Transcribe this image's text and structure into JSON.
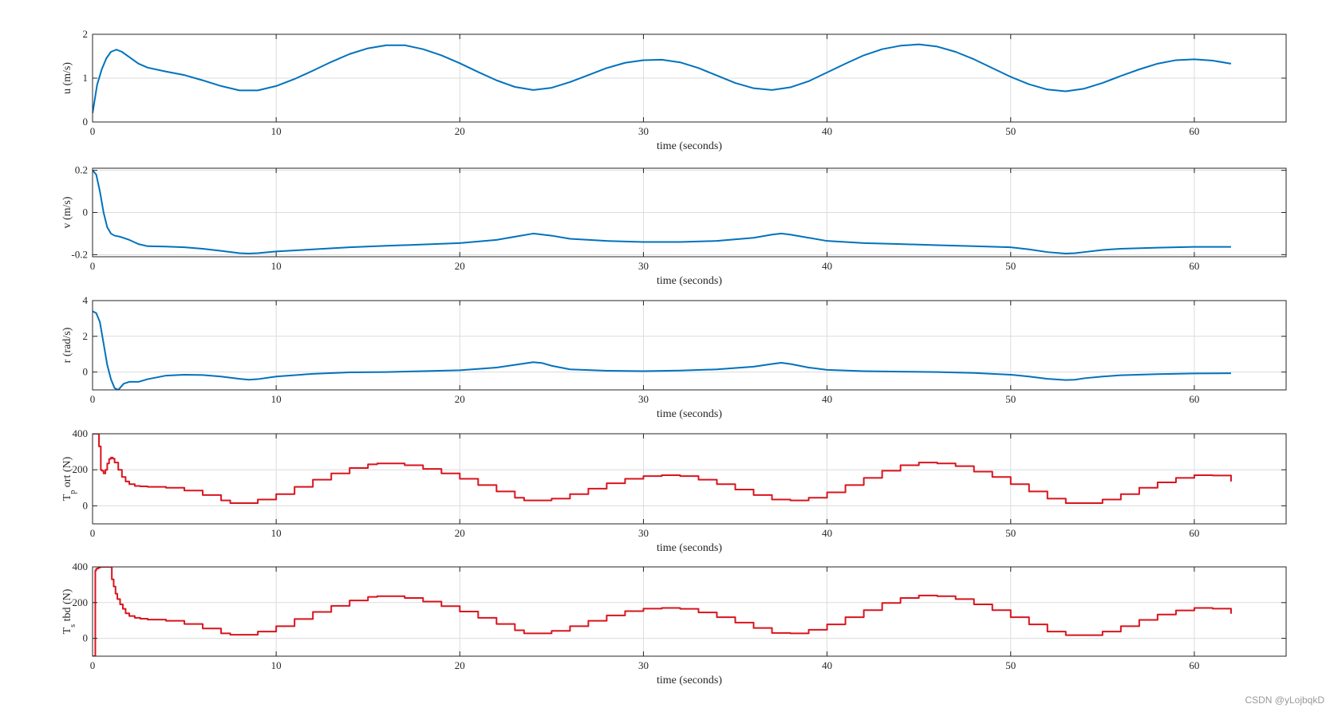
{
  "watermark": "CSDN @yLojbqkD",
  "colors": {
    "blue_series": "#0072BD",
    "red_series": "#D9141E",
    "grid": "#dcdcdc",
    "axis": "#262626"
  },
  "chart_data": [
    {
      "type": "line",
      "xlabel": "time (seconds)",
      "ylabel": "u (m/s)",
      "xlim": [
        0,
        65
      ],
      "ylim": [
        0,
        2
      ],
      "xticks": [
        0,
        10,
        20,
        30,
        40,
        50,
        60
      ],
      "yticks": [
        0,
        1,
        2
      ],
      "ytick_labels": [
        "0",
        "1",
        "2"
      ],
      "grid": true,
      "style": "smooth",
      "series": [
        {
          "color": "#0072BD",
          "x": [
            0,
            0.25,
            0.5,
            0.75,
            1,
            1.3,
            1.6,
            2,
            2.5,
            3,
            4,
            5,
            6,
            7,
            8,
            9,
            10,
            11,
            12,
            13,
            14,
            15,
            16,
            17,
            18,
            19,
            20,
            21,
            22,
            23,
            24,
            25,
            26,
            27,
            28,
            29,
            30,
            31,
            32,
            33,
            34,
            35,
            36,
            37,
            38,
            39,
            40,
            41,
            42,
            43,
            44,
            45,
            46,
            47,
            48,
            49,
            50,
            51,
            52,
            53,
            54,
            55,
            56,
            57,
            58,
            59,
            60,
            61,
            62
          ],
          "y": [
            0.2,
            0.85,
            1.2,
            1.45,
            1.6,
            1.65,
            1.6,
            1.48,
            1.33,
            1.24,
            1.15,
            1.07,
            0.95,
            0.82,
            0.72,
            0.72,
            0.82,
            0.98,
            1.17,
            1.37,
            1.55,
            1.68,
            1.75,
            1.75,
            1.66,
            1.52,
            1.34,
            1.14,
            0.95,
            0.8,
            0.73,
            0.78,
            0.91,
            1.07,
            1.23,
            1.35,
            1.41,
            1.42,
            1.36,
            1.23,
            1.06,
            0.89,
            0.77,
            0.73,
            0.79,
            0.93,
            1.13,
            1.33,
            1.52,
            1.66,
            1.74,
            1.77,
            1.72,
            1.6,
            1.43,
            1.23,
            1.03,
            0.86,
            0.74,
            0.7,
            0.76,
            0.89,
            1.05,
            1.2,
            1.33,
            1.41,
            1.43,
            1.4,
            1.33
          ]
        }
      ]
    },
    {
      "type": "line",
      "xlabel": "time (seconds)",
      "ylabel": "v (m/s)",
      "xlim": [
        0,
        65
      ],
      "ylim": [
        -0.21,
        0.21
      ],
      "xticks": [
        0,
        10,
        20,
        30,
        40,
        50,
        60
      ],
      "yticks": [
        -0.2,
        0,
        0.2
      ],
      "ytick_labels": [
        "-0.2",
        "0",
        "0.2"
      ],
      "grid": true,
      "style": "smooth",
      "series": [
        {
          "color": "#0072BD",
          "x": [
            0,
            0.2,
            0.4,
            0.6,
            0.8,
            1,
            1.2,
            1.5,
            2,
            2.5,
            3,
            4,
            5,
            6,
            7,
            8,
            8.5,
            9,
            10,
            12,
            14,
            16,
            18,
            20,
            22,
            23,
            24,
            25,
            26,
            28,
            30,
            32,
            34,
            36,
            37,
            37.5,
            38,
            39,
            40,
            42,
            44,
            46,
            48,
            50,
            51,
            52,
            53,
            53.5,
            54,
            55,
            56,
            58,
            60,
            62
          ],
          "y": [
            0.2,
            0.18,
            0.1,
            0.0,
            -0.07,
            -0.1,
            -0.11,
            -0.115,
            -0.13,
            -0.15,
            -0.16,
            -0.162,
            -0.165,
            -0.172,
            -0.182,
            -0.193,
            -0.195,
            -0.193,
            -0.185,
            -0.175,
            -0.165,
            -0.158,
            -0.152,
            -0.145,
            -0.13,
            -0.115,
            -0.1,
            -0.11,
            -0.125,
            -0.135,
            -0.14,
            -0.14,
            -0.135,
            -0.12,
            -0.105,
            -0.1,
            -0.105,
            -0.12,
            -0.135,
            -0.145,
            -0.15,
            -0.155,
            -0.16,
            -0.165,
            -0.175,
            -0.188,
            -0.195,
            -0.193,
            -0.188,
            -0.178,
            -0.172,
            -0.167,
            -0.163,
            -0.163
          ]
        }
      ]
    },
    {
      "type": "line",
      "xlabel": "time (seconds)",
      "ylabel": "r (rad/s)",
      "xlim": [
        0,
        65
      ],
      "ylim": [
        -1,
        4
      ],
      "xticks": [
        0,
        10,
        20,
        30,
        40,
        50,
        60
      ],
      "yticks": [
        0,
        2,
        4
      ],
      "ytick_labels": [
        "0",
        "2",
        "4"
      ],
      "grid": true,
      "style": "smooth",
      "series": [
        {
          "color": "#0072BD",
          "x": [
            0,
            0.2,
            0.4,
            0.6,
            0.8,
            1,
            1.2,
            1.4,
            1.7,
            2,
            2.5,
            3,
            4,
            5,
            6,
            7,
            8,
            8.5,
            9,
            10,
            12,
            14,
            16,
            18,
            20,
            22,
            23,
            24,
            24.5,
            25,
            26,
            28,
            30,
            32,
            34,
            36,
            37,
            37.5,
            38,
            39,
            40,
            42,
            44,
            46,
            48,
            50,
            51,
            52,
            53,
            53.5,
            54,
            55,
            56,
            58,
            60,
            62
          ],
          "y": [
            3.4,
            3.3,
            2.8,
            1.6,
            0.4,
            -0.4,
            -0.9,
            -1.0,
            -0.65,
            -0.55,
            -0.55,
            -0.4,
            -0.2,
            -0.15,
            -0.17,
            -0.25,
            -0.38,
            -0.43,
            -0.4,
            -0.25,
            -0.1,
            -0.02,
            0.0,
            0.05,
            0.1,
            0.25,
            0.4,
            0.55,
            0.5,
            0.35,
            0.15,
            0.07,
            0.05,
            0.08,
            0.15,
            0.3,
            0.45,
            0.52,
            0.45,
            0.25,
            0.12,
            0.05,
            0.02,
            0.0,
            -0.05,
            -0.15,
            -0.25,
            -0.38,
            -0.45,
            -0.43,
            -0.35,
            -0.25,
            -0.18,
            -0.12,
            -0.08,
            -0.07
          ]
        }
      ]
    },
    {
      "type": "line",
      "xlabel": "time (seconds)",
      "ylabel": "T",
      "ylabel_sub": "p",
      "ylabel_rest": "ort (N)",
      "xlim": [
        0,
        65
      ],
      "ylim": [
        -100,
        400
      ],
      "xticks": [
        0,
        10,
        20,
        30,
        40,
        50,
        60
      ],
      "yticks": [
        0,
        200,
        400
      ],
      "ytick_labels": [
        "0",
        "200",
        "400"
      ],
      "grid": true,
      "style": "stairs",
      "series": [
        {
          "color": "#D9141E",
          "x": [
            0,
            0.3,
            0.35,
            0.4,
            0.45,
            0.5,
            0.6,
            0.7,
            0.8,
            0.9,
            1,
            1.1,
            1.2,
            1.4,
            1.6,
            1.8,
            2,
            2.3,
            2.6,
            3,
            4,
            5,
            6,
            7,
            7.5,
            8,
            9,
            10,
            11,
            12,
            13,
            14,
            15,
            15.5,
            16,
            17,
            18,
            19,
            20,
            21,
            22,
            23,
            23.5,
            24,
            25,
            26,
            27,
            28,
            29,
            30,
            31,
            32,
            33,
            34,
            35,
            36,
            37,
            38,
            39,
            40,
            41,
            42,
            43,
            44,
            45,
            46,
            47,
            48,
            49,
            50,
            51,
            52,
            53,
            54,
            55,
            56,
            57,
            58,
            59,
            60,
            61,
            62
          ],
          "y": [
            400,
            400,
            330,
            330,
            200,
            195,
            180,
            200,
            235,
            260,
            268,
            262,
            240,
            200,
            160,
            135,
            120,
            110,
            108,
            105,
            100,
            85,
            60,
            30,
            15,
            15,
            35,
            65,
            105,
            145,
            180,
            210,
            230,
            235,
            235,
            225,
            205,
            180,
            150,
            115,
            80,
            45,
            30,
            30,
            40,
            65,
            95,
            125,
            150,
            165,
            170,
            165,
            145,
            120,
            90,
            60,
            35,
            30,
            45,
            75,
            115,
            155,
            195,
            225,
            240,
            235,
            220,
            190,
            160,
            120,
            80,
            40,
            15,
            15,
            35,
            65,
            100,
            130,
            155,
            170,
            168,
            135
          ]
        }
      ]
    },
    {
      "type": "line",
      "xlabel": "time (seconds)",
      "ylabel": "T",
      "ylabel_sub": "s",
      "ylabel_rest": "tbd (N)",
      "xlim": [
        0,
        65
      ],
      "ylim": [
        -100,
        400
      ],
      "xticks": [
        0,
        10,
        20,
        30,
        40,
        50,
        60
      ],
      "yticks": [
        0,
        200,
        400
      ],
      "ytick_labels": [
        "0",
        "200",
        "400"
      ],
      "grid": true,
      "style": "stairs",
      "series": [
        {
          "color": "#D9141E",
          "x": [
            0,
            0.05,
            0.1,
            0.15,
            0.2,
            0.3,
            0.4,
            0.5,
            1,
            1.05,
            1.15,
            1.25,
            1.35,
            1.5,
            1.65,
            1.8,
            2,
            2.3,
            2.6,
            3,
            4,
            5,
            6,
            7,
            7.5,
            8,
            9,
            10,
            11,
            12,
            13,
            14,
            15,
            15.5,
            16,
            17,
            18,
            19,
            20,
            21,
            22,
            23,
            23.5,
            24,
            25,
            26,
            27,
            28,
            29,
            30,
            31,
            32,
            33,
            34,
            35,
            36,
            37,
            38,
            39,
            40,
            41,
            42,
            43,
            44,
            45,
            46,
            47,
            48,
            49,
            50,
            51,
            52,
            53,
            54,
            55,
            56,
            57,
            58,
            59,
            60,
            61,
            62
          ],
          "y": [
            -100,
            -100,
            -100,
            380,
            390,
            395,
            400,
            400,
            400,
            330,
            290,
            250,
            220,
            190,
            165,
            140,
            125,
            115,
            110,
            105,
            98,
            80,
            55,
            28,
            20,
            20,
            38,
            68,
            108,
            148,
            182,
            212,
            232,
            236,
            236,
            226,
            206,
            180,
            150,
            115,
            80,
            45,
            28,
            28,
            42,
            68,
            98,
            128,
            152,
            166,
            170,
            165,
            145,
            118,
            88,
            58,
            30,
            28,
            48,
            78,
            118,
            158,
            198,
            226,
            240,
            236,
            220,
            190,
            158,
            118,
            78,
            38,
            18,
            18,
            38,
            68,
            103,
            133,
            156,
            170,
            166,
            138
          ]
        }
      ]
    }
  ]
}
